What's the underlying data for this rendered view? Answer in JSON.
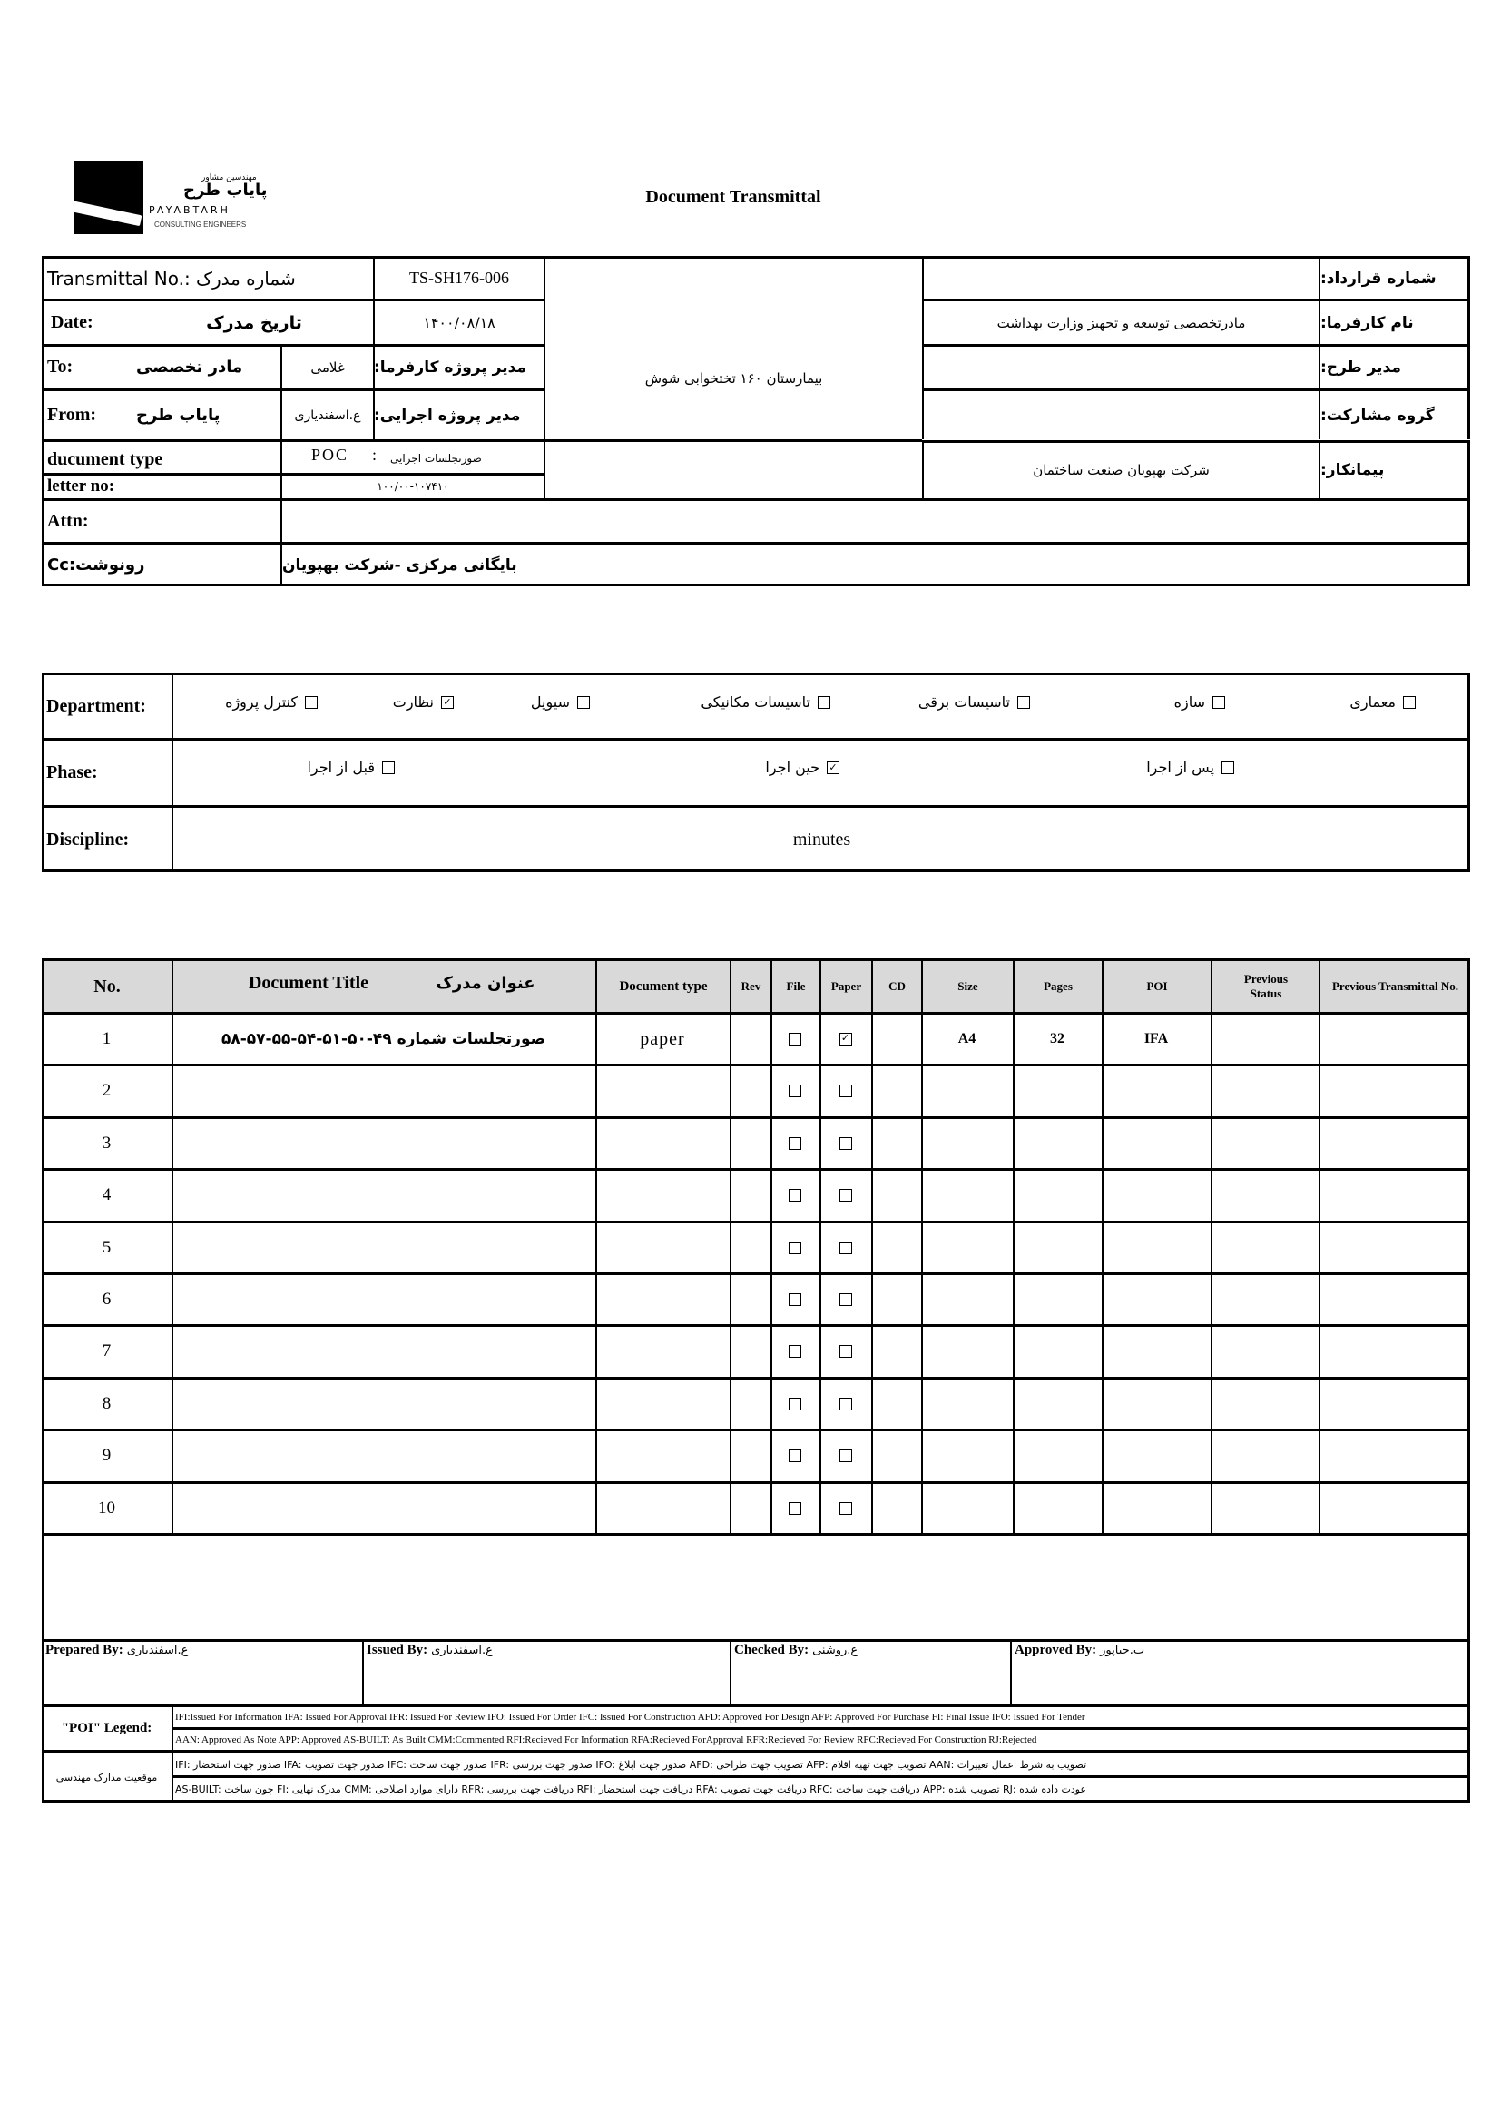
{
  "logo": {
    "fa_small": "مهندسین مشاور",
    "fa_name": "پایاب طرح",
    "en_name": "PAYABTARH",
    "en_sub": "CONSULTING ENGINEERS"
  },
  "title": "Document Transmittal",
  "header": {
    "transmittal_label": "Transmittal No.: شماره مدرک",
    "transmittal_value": "TS-SH176-006",
    "date_label_en": "Date:",
    "date_label_fa": "تاریخ مدرک",
    "date_value": "۱۴۰۰/۰۸/۱۸",
    "to_label": "To:",
    "to_value": "مادر تخصصی",
    "to_person": "غلامی",
    "to_role": "مدیر پروژه کارفرما:",
    "from_label": "From:",
    "from_value": "پایاب طرح",
    "from_person": "ع.اسفندیاری",
    "from_role": "مدیر پروژه اجرایی:",
    "doctype_label": "ducument type",
    "doctype_code": "POC    :",
    "doctype_value": "صورتجلسات اجرایی",
    "letter_label": "letter no:",
    "letter_value": "۱۰۰/۰۰-۱۰۷۴۱۰",
    "project": "بیمارستان ۱۶۰ تختخوابی شوش",
    "contract_label": "شماره قرارداد:",
    "contract_value": "",
    "client_label": "نام کارفرما:",
    "client_value": "مادرتخصصی توسعه و تجهیز وزارت بهداشت",
    "pm_label": "مدیر طرح:",
    "pm_value": "",
    "partner_label": "گروه مشارکت:",
    "partner_value": "",
    "contractor_label": "پیمانکار:",
    "contractor_value": "شرکت بهپویان صنعت ساختمان",
    "attn_label": "Attn:",
    "attn_value": "",
    "cc_label": "Cc:رونوشت",
    "cc_value": "بایگانی مرکزی -شرکت بهپویان"
  },
  "department": {
    "label": "Department:",
    "options": [
      {
        "label": "معماری",
        "checked": false
      },
      {
        "label": "سازه",
        "checked": false
      },
      {
        "label": "تاسیسات برقی",
        "checked": false
      },
      {
        "label": "تاسیسات مکانیکی",
        "checked": false
      },
      {
        "label": "سیویل",
        "checked": false
      },
      {
        "label": "نظارت",
        "checked": true
      },
      {
        "label": "کنترل پروژه",
        "checked": false
      }
    ]
  },
  "phase": {
    "label": "Phase:",
    "options": [
      {
        "label": "پس از اجرا",
        "checked": false
      },
      {
        "label": "حین اجرا",
        "checked": true
      },
      {
        "label": "قبل از اجرا",
        "checked": false
      }
    ]
  },
  "discipline": {
    "label": "Discipline:",
    "value": "minutes"
  },
  "table": {
    "headers": {
      "no": "No.",
      "title_en": "Document Title",
      "title_fa": "عنوان مدرک",
      "doctype": "Document type",
      "rev": "Rev",
      "file": "File",
      "paper": "Paper",
      "cd": "CD",
      "size": "Size",
      "pages": "Pages",
      "poi": "POI",
      "prev_status": "Previous Status",
      "prev_no": "Previous Transmittal No."
    },
    "rows": [
      {
        "no": "1",
        "title": "صورتجلسات شماره ۴۹-۵۰-۵۱-۵۴-۵۵-۵۷-۵۸",
        "doctype": "paper",
        "rev": "",
        "file": false,
        "paper": true,
        "cd": "",
        "size": "A4",
        "pages": "32",
        "poi": "IFA",
        "prev_status": "",
        "prev_no": ""
      },
      {
        "no": "2",
        "title": "",
        "doctype": "",
        "rev": "",
        "file": false,
        "paper": false,
        "cd": "",
        "size": "",
        "pages": "",
        "poi": "",
        "prev_status": "",
        "prev_no": ""
      },
      {
        "no": "3",
        "title": "",
        "doctype": "",
        "rev": "",
        "file": false,
        "paper": false,
        "cd": "",
        "size": "",
        "pages": "",
        "poi": "",
        "prev_status": "",
        "prev_no": ""
      },
      {
        "no": "4",
        "title": "",
        "doctype": "",
        "rev": "",
        "file": false,
        "paper": false,
        "cd": "",
        "size": "",
        "pages": "",
        "poi": "",
        "prev_status": "",
        "prev_no": ""
      },
      {
        "no": "5",
        "title": "",
        "doctype": "",
        "rev": "",
        "file": false,
        "paper": false,
        "cd": "",
        "size": "",
        "pages": "",
        "poi": "",
        "prev_status": "",
        "prev_no": ""
      },
      {
        "no": "6",
        "title": "",
        "doctype": "",
        "rev": "",
        "file": false,
        "paper": false,
        "cd": "",
        "size": "",
        "pages": "",
        "poi": "",
        "prev_status": "",
        "prev_no": ""
      },
      {
        "no": "7",
        "title": "",
        "doctype": "",
        "rev": "",
        "file": false,
        "paper": false,
        "cd": "",
        "size": "",
        "pages": "",
        "poi": "",
        "prev_status": "",
        "prev_no": ""
      },
      {
        "no": "8",
        "title": "",
        "doctype": "",
        "rev": "",
        "file": false,
        "paper": false,
        "cd": "",
        "size": "",
        "pages": "",
        "poi": "",
        "prev_status": "",
        "prev_no": ""
      },
      {
        "no": "9",
        "title": "",
        "doctype": "",
        "rev": "",
        "file": false,
        "paper": false,
        "cd": "",
        "size": "",
        "pages": "",
        "poi": "",
        "prev_status": "",
        "prev_no": ""
      },
      {
        "no": "10",
        "title": "",
        "doctype": "",
        "rev": "",
        "file": false,
        "paper": false,
        "cd": "",
        "size": "",
        "pages": "",
        "poi": "",
        "prev_status": "",
        "prev_no": ""
      }
    ]
  },
  "signatures": [
    {
      "label": "Prepared By:",
      "name": "ع.اسفندیاری"
    },
    {
      "label": "Issued By:",
      "name": "ع.اسفندیاری"
    },
    {
      "label": "Checked By:",
      "name": "ع.روشنی"
    },
    {
      "label": "Approved By:",
      "name": "ب.جباپور"
    }
  ],
  "legend": {
    "label": "\"POI\" Legend:",
    "line1": "IFI:Issued For Information  IFA: Issued For Approval  IFR: Issued For Review   IFO: Issued For Order  IFC: Issued For Construction AFD: Approved For Design AFP: Approved For Purchase  FI: Final Issue  IFO: Issued For Tender",
    "line2": "AAN: Approved As Note  APP: Approved  AS-BUILT: As Built CMM:Commented  RFI:Recieved For Information   RFA:Recieved ForApproval   RFR:Recieved For Review  RFC:Recieved For Construction  RJ:Rejected",
    "fa_label": "موقعیت مدارک مهندسی",
    "fa_line1": "IFI: صدور جهت استحضار   IFA: صدور جهت تصویب   IFC: صدور جهت ساخت   IFR: صدور جهت بررسی   IFO: صدور جهت ابلاغ   AFD: تصویب جهت طراحی   AFP: تصویب جهت تهیه اقلام   AAN: تصویب به شرط اعمال تغییرات",
    "fa_line2": "AS-BUILT: چون ساخت   FI: مدرک نهایی   CMM: دارای موارد اصلاحی   RFR: دریافت جهت بررسی   RFI: دریافت جهت استحضار   RFA: دریافت جهت تصویب   RFC: دریافت جهت ساخت   APP: تصویب شده   RJ: عودت داده شده"
  }
}
